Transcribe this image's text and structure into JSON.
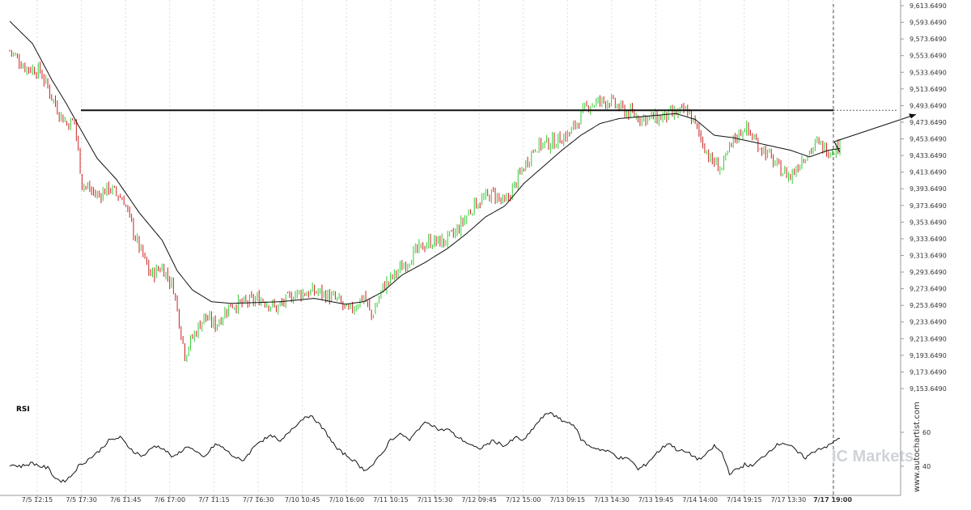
{
  "chart_data": [
    {
      "type": "candlestick",
      "panel": "price",
      "interval": "30 minutes",
      "ylim": [
        9153.649,
        9613.649
      ],
      "price_ticks": [
        "9,613.6490",
        "9,593.6490",
        "9,573.6490",
        "9,553.6490",
        "9,533.6490",
        "9,513.6490",
        "9,493.6490",
        "9,473.6490",
        "9,453.6490",
        "9,433.6490",
        "9,413.6490",
        "9,393.6490",
        "9,373.6490",
        "9,353.6490",
        "9,333.6490",
        "9,313.6490",
        "9,293.6490",
        "9,273.6490",
        "9,253.6490",
        "9,233.6490",
        "9,213.6490",
        "9,193.6490",
        "9,173.6490",
        "9,153.6490"
      ],
      "x_tick_labels": [
        "7/5 12:15",
        "7/5 17:30",
        "7/6 11:45",
        "7/6 17:00",
        "7/7 11:15",
        "7/7 16:30",
        "7/10 10:45",
        "7/10 16:00",
        "7/11 10:15",
        "7/11 15:30",
        "7/12 09:45",
        "7/12 15:00",
        "7/13 09:15",
        "7/13 14:30",
        "7/13 19:45",
        "7/14 14:00",
        "7/14 19:15",
        "7/17 13:30",
        "7/17 19:00"
      ],
      "highlight_x_label": "7/17 19:00",
      "resistance_level": 9488,
      "projection_target": 9483,
      "close_path_keypoints": [
        [
          0,
          9560
        ],
        [
          8,
          9540
        ],
        [
          16,
          9535
        ],
        [
          22,
          9505
        ],
        [
          26,
          9485
        ],
        [
          30,
          9472
        ],
        [
          34,
          9475
        ],
        [
          38,
          9400
        ],
        [
          46,
          9385
        ],
        [
          52,
          9395
        ],
        [
          60,
          9380
        ],
        [
          66,
          9335
        ],
        [
          74,
          9290
        ],
        [
          80,
          9300
        ],
        [
          86,
          9275
        ],
        [
          92,
          9195
        ],
        [
          96,
          9215
        ],
        [
          102,
          9240
        ],
        [
          108,
          9230
        ],
        [
          116,
          9255
        ],
        [
          122,
          9255
        ],
        [
          132,
          9262
        ],
        [
          140,
          9250
        ],
        [
          150,
          9268
        ],
        [
          162,
          9270
        ],
        [
          172,
          9260
        ],
        [
          178,
          9245
        ],
        [
          186,
          9265
        ],
        [
          190,
          9240
        ],
        [
          196,
          9275
        ],
        [
          204,
          9295
        ],
        [
          212,
          9315
        ],
        [
          220,
          9330
        ],
        [
          228,
          9330
        ],
        [
          234,
          9340
        ],
        [
          244,
          9375
        ],
        [
          254,
          9388
        ],
        [
          260,
          9375
        ],
        [
          270,
          9420
        ],
        [
          276,
          9445
        ],
        [
          286,
          9450
        ],
        [
          294,
          9460
        ],
        [
          304,
          9495
        ],
        [
          314,
          9500
        ],
        [
          322,
          9488
        ],
        [
          330,
          9480
        ],
        [
          340,
          9478
        ],
        [
          350,
          9484
        ],
        [
          356,
          9488
        ],
        [
          362,
          9460
        ],
        [
          368,
          9428
        ],
        [
          374,
          9418
        ],
        [
          380,
          9452
        ],
        [
          386,
          9468
        ],
        [
          392,
          9450
        ],
        [
          398,
          9435
        ],
        [
          404,
          9418
        ],
        [
          410,
          9408
        ],
        [
          416,
          9430
        ],
        [
          424,
          9448
        ],
        [
          430,
          9440
        ],
        [
          436,
          9445
        ]
      ],
      "moving_average_keypoints": [
        [
          0,
          9595
        ],
        [
          12,
          9568
        ],
        [
          22,
          9525
        ],
        [
          30,
          9495
        ],
        [
          36,
          9470
        ],
        [
          46,
          9430
        ],
        [
          56,
          9405
        ],
        [
          68,
          9365
        ],
        [
          80,
          9332
        ],
        [
          88,
          9295
        ],
        [
          96,
          9272
        ],
        [
          106,
          9258
        ],
        [
          116,
          9256
        ],
        [
          130,
          9257
        ],
        [
          142,
          9258
        ],
        [
          160,
          9262
        ],
        [
          176,
          9255
        ],
        [
          186,
          9258
        ],
        [
          196,
          9270
        ],
        [
          206,
          9290
        ],
        [
          218,
          9305
        ],
        [
          230,
          9322
        ],
        [
          240,
          9340
        ],
        [
          250,
          9360
        ],
        [
          260,
          9373
        ],
        [
          270,
          9400
        ],
        [
          280,
          9420
        ],
        [
          290,
          9440
        ],
        [
          300,
          9458
        ],
        [
          310,
          9472
        ],
        [
          320,
          9478
        ],
        [
          330,
          9480
        ],
        [
          340,
          9482
        ],
        [
          350,
          9484
        ],
        [
          360,
          9477
        ],
        [
          370,
          9458
        ],
        [
          380,
          9455
        ],
        [
          390,
          9450
        ],
        [
          400,
          9445
        ],
        [
          410,
          9440
        ],
        [
          420,
          9432
        ],
        [
          430,
          9440
        ],
        [
          436,
          9442
        ]
      ]
    },
    {
      "type": "line",
      "panel": "indicator",
      "name": "RSI",
      "ticks": [
        "60",
        "40"
      ],
      "ylim": [
        20,
        75
      ],
      "keypoints": [
        [
          0,
          41
        ],
        [
          6,
          40
        ],
        [
          12,
          42
        ],
        [
          16,
          40
        ],
        [
          20,
          39
        ],
        [
          24,
          33
        ],
        [
          28,
          31
        ],
        [
          32,
          34
        ],
        [
          36,
          40
        ],
        [
          40,
          43
        ],
        [
          46,
          48
        ],
        [
          52,
          55
        ],
        [
          58,
          57
        ],
        [
          62,
          52
        ],
        [
          66,
          48
        ],
        [
          70,
          46
        ],
        [
          76,
          52
        ],
        [
          80,
          51
        ],
        [
          86,
          45
        ],
        [
          90,
          49
        ],
        [
          94,
          52
        ],
        [
          98,
          48
        ],
        [
          102,
          45
        ],
        [
          108,
          53
        ],
        [
          112,
          51
        ],
        [
          116,
          47
        ],
        [
          122,
          43
        ],
        [
          126,
          48
        ],
        [
          130,
          54
        ],
        [
          138,
          58
        ],
        [
          142,
          54
        ],
        [
          148,
          62
        ],
        [
          152,
          66
        ],
        [
          156,
          70
        ],
        [
          160,
          68
        ],
        [
          166,
          60
        ],
        [
          172,
          50
        ],
        [
          176,
          47
        ],
        [
          180,
          44
        ],
        [
          186,
          38
        ],
        [
          190,
          40
        ],
        [
          196,
          48
        ],
        [
          200,
          56
        ],
        [
          206,
          59
        ],
        [
          210,
          55
        ],
        [
          216,
          64
        ],
        [
          220,
          66
        ],
        [
          226,
          61
        ],
        [
          230,
          62
        ],
        [
          234,
          58
        ],
        [
          240,
          54
        ],
        [
          246,
          50
        ],
        [
          254,
          55
        ],
        [
          260,
          52
        ],
        [
          266,
          57
        ],
        [
          270,
          55
        ],
        [
          276,
          64
        ],
        [
          280,
          69
        ],
        [
          284,
          72
        ],
        [
          288,
          68
        ],
        [
          292,
          66
        ],
        [
          296,
          65
        ],
        [
          300,
          56
        ],
        [
          304,
          52
        ],
        [
          310,
          50
        ],
        [
          316,
          48
        ],
        [
          320,
          45
        ],
        [
          326,
          44
        ],
        [
          330,
          38
        ],
        [
          334,
          41
        ],
        [
          340,
          48
        ],
        [
          346,
          54
        ],
        [
          350,
          50
        ],
        [
          356,
          48
        ],
        [
          362,
          44
        ],
        [
          366,
          47
        ],
        [
          370,
          52
        ],
        [
          374,
          48
        ],
        [
          378,
          36
        ],
        [
          382,
          38
        ],
        [
          386,
          41
        ],
        [
          390,
          40
        ],
        [
          394,
          44
        ],
        [
          398,
          48
        ],
        [
          402,
          52
        ],
        [
          406,
          54
        ],
        [
          410,
          52
        ],
        [
          414,
          48
        ],
        [
          418,
          45
        ],
        [
          424,
          50
        ],
        [
          430,
          52
        ],
        [
          436,
          57
        ]
      ]
    }
  ],
  "rsi_label": "RSI",
  "watermark": "IC Markets",
  "source_vertical": "www.autochartist.com",
  "colors": {
    "up_candle": "#33cc33",
    "down_candle": "#cc2222",
    "line": "#111111",
    "grid": "#dddddd",
    "watermark": "#cfd3d8"
  }
}
